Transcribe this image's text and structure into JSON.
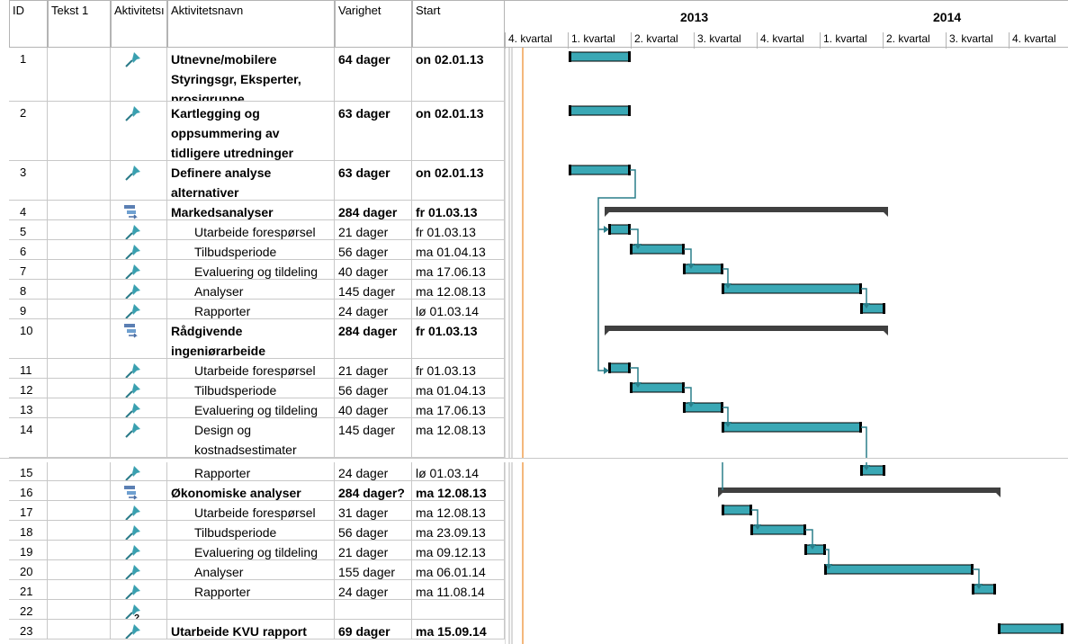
{
  "columns": {
    "id": "ID",
    "text1": "Tekst 1",
    "mode": "Aktivitetsı",
    "name": "Aktivitetsnavn",
    "duration": "Varighet",
    "start": "Start"
  },
  "timeline": {
    "years": [
      "2013",
      "2014"
    ],
    "quarters": [
      "4. kvartal",
      "1. kvartal",
      "2. kvartal",
      "3. kvartal",
      "4. kvartal",
      "1. kvartal",
      "2. kvartal",
      "3. kvartal",
      "4. kvartal"
    ]
  },
  "colors": {
    "bar": "#3aa8b5",
    "summary": "#404040",
    "link": "#2a7f8a",
    "today": "#f0a050",
    "pin": "#3aa0b0"
  },
  "rows": [
    {
      "id": "1",
      "name_lines": [
        "Utnevne/mobilere",
        "Styringsgr, Eksperter,",
        "prosjgruppe"
      ],
      "duration": "64 dager",
      "start": "on 02.01.13",
      "bold": true,
      "indent": false,
      "icon": "pin-icon"
    },
    {
      "id": "2",
      "name_lines": [
        "Kartlegging og",
        "oppsummering av",
        "tidligere utredninger"
      ],
      "duration": "63 dager",
      "start": "on 02.01.13",
      "bold": true,
      "indent": false,
      "icon": "pin-icon"
    },
    {
      "id": "3",
      "name_lines": [
        "Definere analyse",
        "alternativer"
      ],
      "duration": "63 dager",
      "start": "on 02.01.13",
      "bold": true,
      "indent": false,
      "icon": "pin-icon"
    },
    {
      "id": "4",
      "name_lines": [
        "Markedsanalyser"
      ],
      "duration": "284 dager",
      "start": "fr 01.03.13",
      "bold": true,
      "indent": false,
      "icon": "summary-icon"
    },
    {
      "id": "5",
      "name_lines": [
        "Utarbeide forespørsel"
      ],
      "duration": "21 dager",
      "start": "fr 01.03.13",
      "bold": false,
      "indent": true,
      "icon": "pin-icon"
    },
    {
      "id": "6",
      "name_lines": [
        "Tilbudsperiode"
      ],
      "duration": "56 dager",
      "start": "ma 01.04.13",
      "bold": false,
      "indent": true,
      "icon": "pin-icon"
    },
    {
      "id": "7",
      "name_lines": [
        "Evaluering og tildeling"
      ],
      "duration": "40 dager",
      "start": "ma 17.06.13",
      "bold": false,
      "indent": true,
      "icon": "pin-icon"
    },
    {
      "id": "8",
      "name_lines": [
        "Analyser"
      ],
      "duration": "145 dager",
      "start": "ma 12.08.13",
      "bold": false,
      "indent": true,
      "icon": "pin-icon"
    },
    {
      "id": "9",
      "name_lines": [
        "Rapporter"
      ],
      "duration": "24 dager",
      "start": "lø 01.03.14",
      "bold": false,
      "indent": true,
      "icon": "pin-icon"
    },
    {
      "id": "10",
      "name_lines": [
        "Rådgivende",
        "ingeniørarbeide"
      ],
      "duration": "284 dager",
      "start": "fr 01.03.13",
      "bold": true,
      "indent": false,
      "icon": "summary-icon"
    },
    {
      "id": "11",
      "name_lines": [
        "Utarbeide forespørsel"
      ],
      "duration": "21 dager",
      "start": "fr 01.03.13",
      "bold": false,
      "indent": true,
      "icon": "pin-icon"
    },
    {
      "id": "12",
      "name_lines": [
        "Tilbudsperiode"
      ],
      "duration": "56 dager",
      "start": "ma 01.04.13",
      "bold": false,
      "indent": true,
      "icon": "pin-icon"
    },
    {
      "id": "13",
      "name_lines": [
        "Evaluering og tildeling"
      ],
      "duration": "40 dager",
      "start": "ma 17.06.13",
      "bold": false,
      "indent": true,
      "icon": "pin-icon"
    },
    {
      "id": "14",
      "name_lines": [
        "Design og",
        "kostnadsestimater"
      ],
      "duration": "145 dager",
      "start": "ma 12.08.13",
      "bold": false,
      "indent": true,
      "icon": "pin-icon"
    },
    {
      "id": "15",
      "name_lines": [
        "Rapporter"
      ],
      "duration": "24 dager",
      "start": "lø 01.03.14",
      "bold": false,
      "indent": true,
      "icon": "pin-icon"
    },
    {
      "id": "16",
      "name_lines": [
        "Økonomiske analyser"
      ],
      "duration": "284 dager?",
      "start": "ma 12.08.13",
      "bold": true,
      "indent": false,
      "icon": "summary-icon"
    },
    {
      "id": "17",
      "name_lines": [
        "Utarbeide forespørsel"
      ],
      "duration": "31 dager",
      "start": "ma 12.08.13",
      "bold": false,
      "indent": true,
      "icon": "pin-icon"
    },
    {
      "id": "18",
      "name_lines": [
        "Tilbudsperiode"
      ],
      "duration": "56 dager",
      "start": "ma 23.09.13",
      "bold": false,
      "indent": true,
      "icon": "pin-icon"
    },
    {
      "id": "19",
      "name_lines": [
        "Evaluering og tildeling"
      ],
      "duration": "21 dager",
      "start": "ma 09.12.13",
      "bold": false,
      "indent": true,
      "icon": "pin-icon"
    },
    {
      "id": "20",
      "name_lines": [
        "Analyser"
      ],
      "duration": "155 dager",
      "start": "ma 06.01.14",
      "bold": false,
      "indent": true,
      "icon": "pin-icon"
    },
    {
      "id": "21",
      "name_lines": [
        "Rapporter"
      ],
      "duration": "24 dager",
      "start": "ma 11.08.14",
      "bold": false,
      "indent": true,
      "icon": "pin-icon"
    },
    {
      "id": "22",
      "name_lines": [],
      "duration": "",
      "start": "",
      "bold": false,
      "indent": false,
      "icon": "pin-question-icon"
    },
    {
      "id": "23",
      "name_lines": [
        "Utarbeide KVU rapport"
      ],
      "duration": "69 dager",
      "start": "ma 15.09.14",
      "bold": true,
      "indent": false,
      "icon": "pin-icon"
    }
  ]
}
